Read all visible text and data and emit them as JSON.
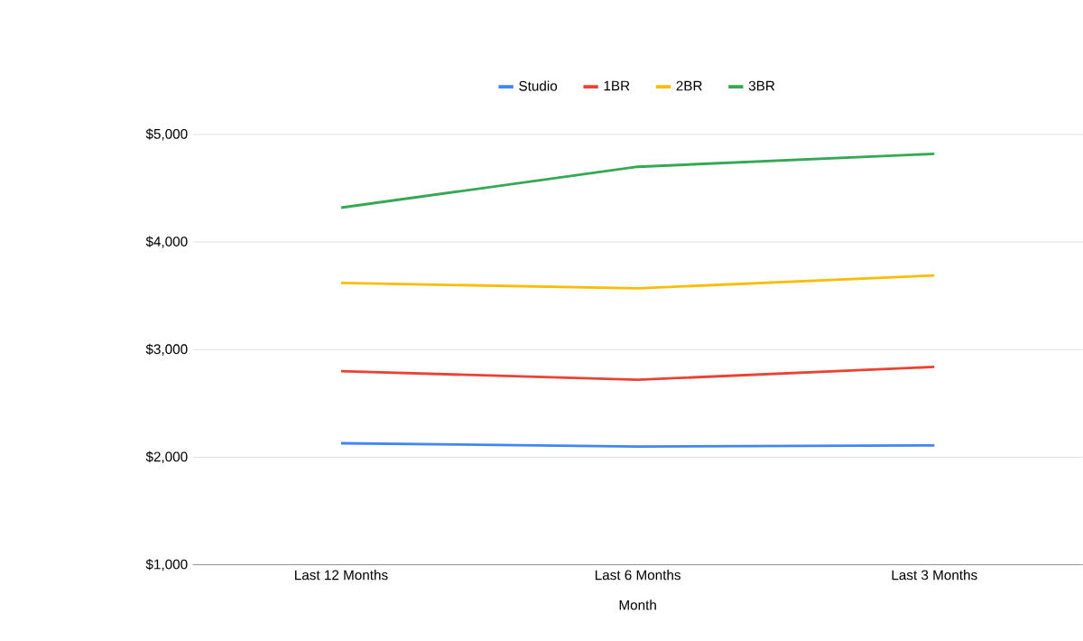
{
  "chart_data": {
    "type": "line",
    "xlabel": "Month",
    "categories": [
      "Last 12 Months",
      "Last 6 Months",
      "Last 3 Months"
    ],
    "series": [
      {
        "name": "Studio",
        "color": "#4285f4",
        "values": [
          2130,
          2100,
          2110
        ]
      },
      {
        "name": "1BR",
        "color": "#ea4335",
        "values": [
          2800,
          2720,
          2840
        ]
      },
      {
        "name": "2BR",
        "color": "#fbbc04",
        "values": [
          3620,
          3570,
          3690
        ]
      },
      {
        "name": "3BR",
        "color": "#34a853",
        "values": [
          4320,
          4700,
          4820
        ]
      }
    ],
    "ylim": [
      1000,
      5000
    ],
    "yticks": [
      {
        "value": 1000,
        "label": "$1,000"
      },
      {
        "value": 2000,
        "label": "$2,000"
      },
      {
        "value": 3000,
        "label": "$3,000"
      },
      {
        "value": 4000,
        "label": "$4,000"
      },
      {
        "value": 5000,
        "label": "$5,000"
      }
    ],
    "grid": "y",
    "legend": "top"
  }
}
